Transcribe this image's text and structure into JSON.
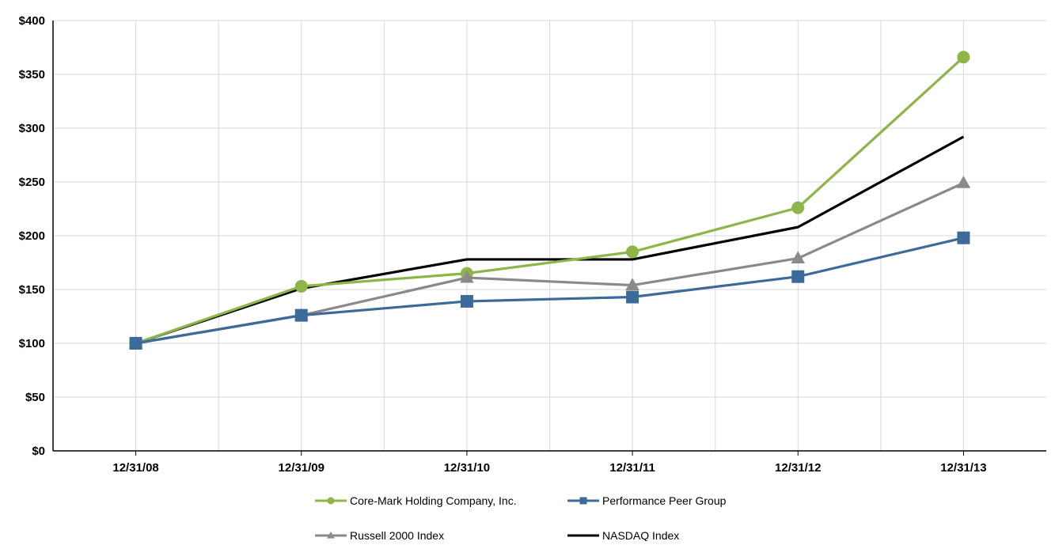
{
  "chart_data": {
    "type": "line",
    "title": "",
    "xlabel": "",
    "ylabel": "",
    "categories": [
      "12/31/08",
      "12/31/09",
      "12/31/10",
      "12/31/11",
      "12/31/12",
      "12/31/13"
    ],
    "ylim": [
      0,
      400
    ],
    "yticks": [
      "$0",
      "$50",
      "$100",
      "$150",
      "$200",
      "$250",
      "$300",
      "$350",
      "$400"
    ],
    "grid": true,
    "legend_position": "bottom",
    "series": [
      {
        "name": "Core-Mark Holding Company, Inc.",
        "color": "#8db548",
        "marker": "circle",
        "values": [
          100,
          153,
          165,
          185,
          226,
          366
        ]
      },
      {
        "name": "Performance Peer Group",
        "color": "#3c6a99",
        "marker": "square",
        "values": [
          100,
          126,
          139,
          143,
          162,
          198
        ]
      },
      {
        "name": "Russell 2000 Index",
        "color": "#8a8a8a",
        "marker": "triangle",
        "values": [
          100,
          126,
          161,
          154,
          179,
          249
        ]
      },
      {
        "name": "NASDAQ Index",
        "color": "#000000",
        "marker": "none",
        "values": [
          100,
          151,
          178,
          178,
          208,
          292
        ]
      }
    ]
  }
}
